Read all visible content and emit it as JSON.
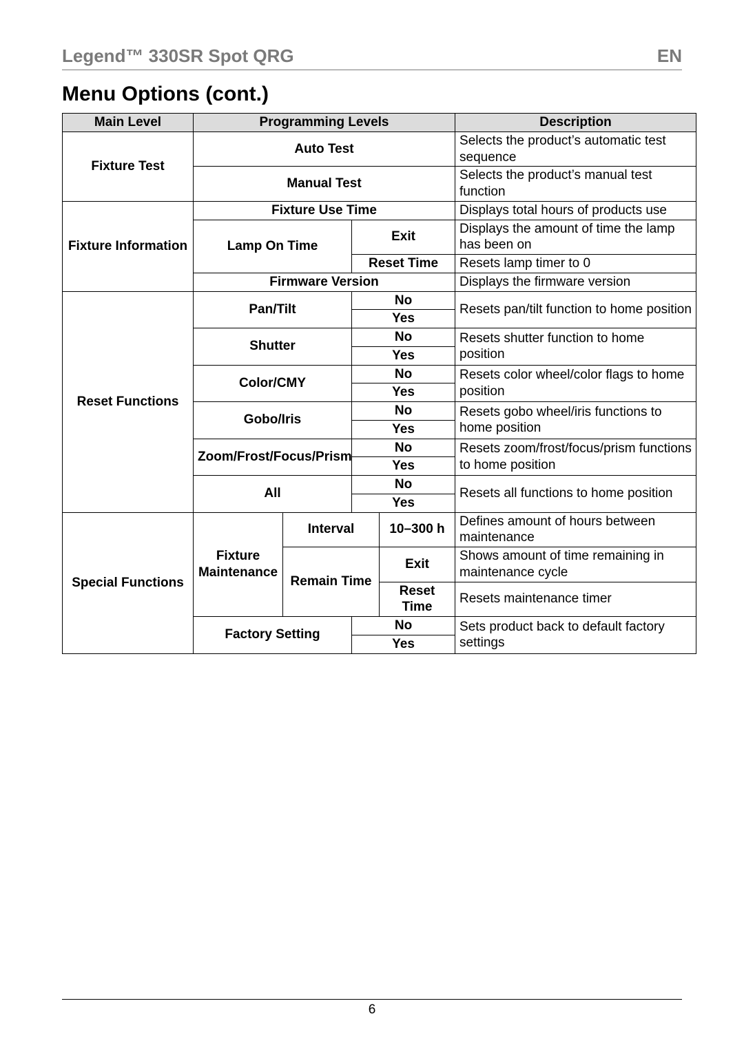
{
  "header": {
    "title": "Legend™ 330SR Spot QRG",
    "lang": "EN"
  },
  "section_title": "Menu Options (cont.)",
  "table": {
    "head": {
      "main": "Main Level",
      "prog": "Programming Levels",
      "desc": "Description"
    },
    "fixture_test": {
      "label": "Fixture Test",
      "auto_test": "Auto Test",
      "auto_desc": "Selects the product’s automatic test sequence",
      "manual_test": "Manual Test",
      "manual_desc": "Selects the product’s manual test function"
    },
    "fixture_info": {
      "label": "Fixture Information",
      "use_time": "Fixture Use Time",
      "use_desc": "Displays total hours of products use",
      "lamp_on": "Lamp On Time",
      "exit": "Exit",
      "exit_desc": "Displays the amount of time the lamp has been on",
      "reset": "Reset Time",
      "reset_desc": "Resets lamp timer to 0",
      "fw": "Firmware Version",
      "fw_desc": "Displays the firmware version"
    },
    "reset": {
      "label": "Reset Functions",
      "pan": "Pan/Tilt",
      "pan_desc": "Resets pan/tilt function to home position",
      "shutter": "Shutter",
      "shutter_desc": "Resets shutter function to home position",
      "color": "Color/CMY",
      "color_desc": "Resets color wheel/color flags to home position",
      "gobo": "Gobo/Iris",
      "gobo_desc": "Resets gobo wheel/iris functions to home position",
      "zoom": "Zoom/Frost/Focus/Prism",
      "zoom_desc": "Resets zoom/frost/focus/prism functions to home position",
      "all": "All",
      "all_desc": "Resets all functions to home position",
      "no": "No",
      "yes": "Yes"
    },
    "special": {
      "label": "Special Functions",
      "fm": "Fixture Maintenance",
      "interval": "Interval",
      "interval_val": "10–300 h",
      "interval_desc": "Defines amount of hours between maintenance",
      "remain": "Remain Time",
      "exit": "Exit",
      "exit_desc": "Shows amount of time remaining in maintenance cycle",
      "reset": "Reset Time",
      "reset_desc": "Resets maintenance timer",
      "factory": "Factory Setting",
      "no": "No",
      "yes": "Yes",
      "factory_desc": "Sets product back to default factory settings"
    }
  },
  "page_number": "6",
  "colors": {
    "header_gray": "#7a7a7a",
    "thead_bg": "#dcdcdc"
  }
}
